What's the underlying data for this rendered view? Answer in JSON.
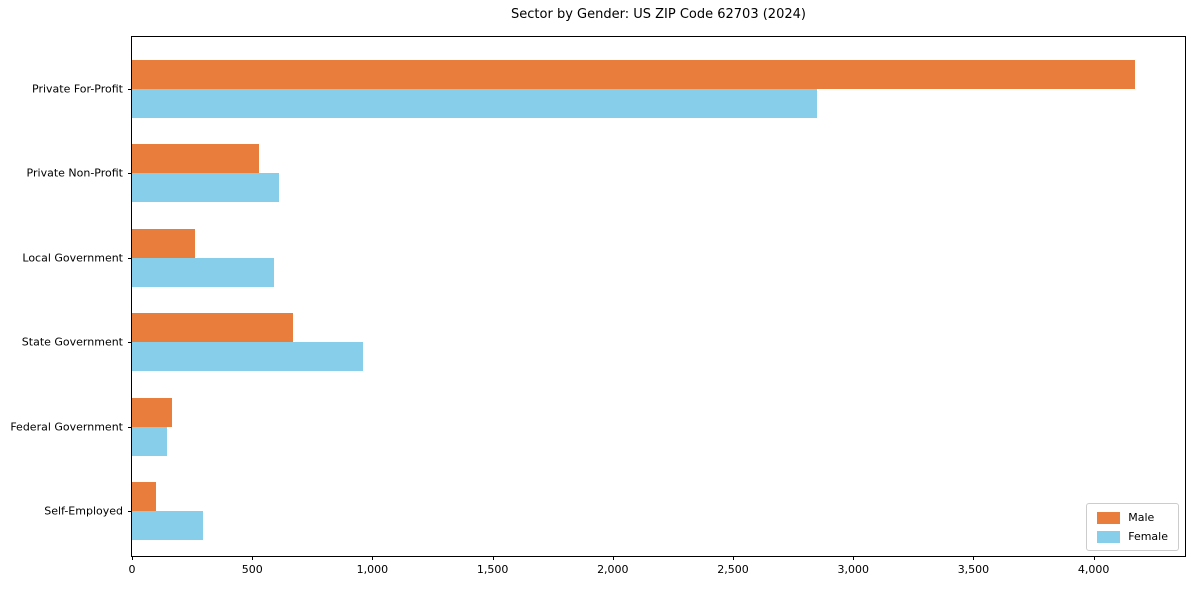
{
  "title": "Sector by Gender: US ZIP Code 62703 (2024)",
  "chart_data": {
    "type": "bar",
    "orientation": "horizontal",
    "title": "Sector by Gender: US ZIP Code 62703 (2024)",
    "categories": [
      "Private For-Profit",
      "Private Non-Profit",
      "Local Government",
      "State Government",
      "Federal Government",
      "Self-Employed"
    ],
    "series": [
      {
        "name": "Male",
        "color": "#e97e3c",
        "values": [
          4170,
          530,
          260,
          670,
          165,
          100
        ]
      },
      {
        "name": "Female",
        "color": "#87ceeb",
        "values": [
          2850,
          610,
          590,
          960,
          145,
          295
        ]
      }
    ],
    "xlabel": "",
    "ylabel": "",
    "xlim": [
      0,
      4380
    ],
    "x_ticks": [
      0,
      500,
      1000,
      1500,
      2000,
      2500,
      3000,
      3500,
      4000
    ],
    "x_tick_labels": [
      "0",
      "500",
      "1,000",
      "1,500",
      "2,000",
      "2,500",
      "3,000",
      "3,500",
      "4,000"
    ],
    "grid": false,
    "legend_position": "lower right"
  }
}
